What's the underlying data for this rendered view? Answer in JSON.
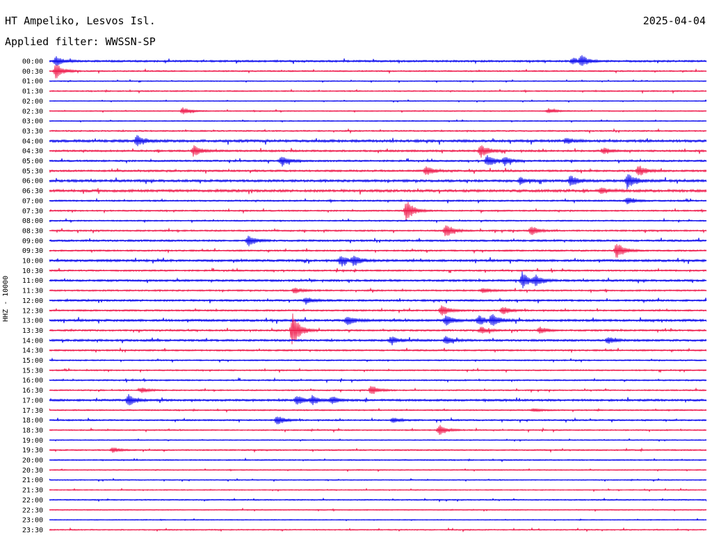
{
  "header": {
    "station": "HT Ampeliko, Lesvos Isl.",
    "date": "2025-04-04",
    "filter": "Applied filter: WWSSN-SP"
  },
  "axis": {
    "channel_label": "HHZ - 10000"
  },
  "chart_data": {
    "type": "line",
    "title": "HT Ampeliko, Lesvos Isl.",
    "subtitle": "Applied filter: WWSSN-SP",
    "ylabel": "HHZ - 10000",
    "trace_minutes": 30,
    "series_colors": [
      "#0000ee",
      "#ee1144"
    ],
    "rows": [
      "00:00",
      "00:30",
      "01:00",
      "01:30",
      "02:00",
      "02:30",
      "03:00",
      "03:30",
      "04:00",
      "04:30",
      "05:00",
      "05:30",
      "06:00",
      "06:30",
      "07:00",
      "07:30",
      "08:00",
      "08:30",
      "09:00",
      "09:30",
      "10:00",
      "10:30",
      "11:00",
      "11:30",
      "12:00",
      "12:30",
      "13:00",
      "13:30",
      "14:00",
      "14:30",
      "15:00",
      "15:30",
      "16:00",
      "16:30",
      "17:00",
      "17:30",
      "18:00",
      "18:30",
      "19:00",
      "19:30",
      "20:00",
      "20:30",
      "21:00",
      "21:30",
      "22:00",
      "22:30",
      "23:00",
      "23:30"
    ],
    "noise": [
      1.2,
      0.8,
      0.6,
      0.8,
      0.5,
      0.6,
      0.6,
      0.9,
      1.6,
      1.2,
      1.1,
      1.2,
      1.5,
      1.6,
      1.0,
      0.9,
      0.8,
      1.0,
      1.2,
      1.0,
      1.4,
      1.0,
      1.3,
      1.0,
      1.2,
      1.0,
      1.4,
      1.1,
      1.3,
      1.0,
      0.8,
      0.8,
      0.9,
      0.8,
      1.3,
      0.8,
      0.9,
      0.8,
      0.6,
      0.8,
      0.7,
      0.6,
      0.6,
      0.6,
      0.7,
      0.6,
      0.5,
      0.7
    ],
    "events": [
      {
        "row": 0,
        "t": 0.3,
        "amp": 7
      },
      {
        "row": 0,
        "t": 24.3,
        "amp": 7
      },
      {
        "row": 0,
        "t": 23.9,
        "amp": 5
      },
      {
        "row": 1,
        "t": 0.3,
        "amp": 11
      },
      {
        "row": 5,
        "t": 6.1,
        "amp": 6
      },
      {
        "row": 5,
        "t": 22.8,
        "amp": 4
      },
      {
        "row": 8,
        "t": 4.0,
        "amp": 9
      },
      {
        "row": 8,
        "t": 23.6,
        "amp": 4
      },
      {
        "row": 9,
        "t": 6.6,
        "amp": 8
      },
      {
        "row": 9,
        "t": 19.7,
        "amp": 10
      },
      {
        "row": 9,
        "t": 25.3,
        "amp": 5
      },
      {
        "row": 10,
        "t": 10.6,
        "amp": 8
      },
      {
        "row": 10,
        "t": 20.0,
        "amp": 9
      },
      {
        "row": 10,
        "t": 20.8,
        "amp": 6
      },
      {
        "row": 11,
        "t": 17.2,
        "amp": 7
      },
      {
        "row": 11,
        "t": 26.9,
        "amp": 8
      },
      {
        "row": 12,
        "t": 26.4,
        "amp": 12
      },
      {
        "row": 12,
        "t": 23.8,
        "amp": 8
      },
      {
        "row": 12,
        "t": 21.5,
        "amp": 5
      },
      {
        "row": 13,
        "t": 25.2,
        "amp": 5
      },
      {
        "row": 14,
        "t": 26.4,
        "amp": 5
      },
      {
        "row": 15,
        "t": 16.3,
        "amp": 16
      },
      {
        "row": 17,
        "t": 18.1,
        "amp": 10
      },
      {
        "row": 17,
        "t": 22.0,
        "amp": 7
      },
      {
        "row": 18,
        "t": 9.1,
        "amp": 8
      },
      {
        "row": 19,
        "t": 25.9,
        "amp": 12
      },
      {
        "row": 20,
        "t": 13.3,
        "amp": 8
      },
      {
        "row": 20,
        "t": 13.9,
        "amp": 7
      },
      {
        "row": 22,
        "t": 21.6,
        "amp": 11
      },
      {
        "row": 22,
        "t": 22.2,
        "amp": 7
      },
      {
        "row": 23,
        "t": 11.2,
        "amp": 5
      },
      {
        "row": 23,
        "t": 19.8,
        "amp": 4
      },
      {
        "row": 24,
        "t": 11.7,
        "amp": 5
      },
      {
        "row": 25,
        "t": 17.9,
        "amp": 8
      },
      {
        "row": 25,
        "t": 20.7,
        "amp": 6
      },
      {
        "row": 26,
        "t": 13.6,
        "amp": 7
      },
      {
        "row": 26,
        "t": 18.1,
        "amp": 8
      },
      {
        "row": 26,
        "t": 19.6,
        "amp": 7
      },
      {
        "row": 26,
        "t": 20.2,
        "amp": 9
      },
      {
        "row": 27,
        "t": 11.1,
        "amp": 24
      },
      {
        "row": 27,
        "t": 19.7,
        "amp": 5
      },
      {
        "row": 27,
        "t": 22.4,
        "amp": 5
      },
      {
        "row": 28,
        "t": 15.6,
        "amp": 6
      },
      {
        "row": 28,
        "t": 18.1,
        "amp": 6
      },
      {
        "row": 28,
        "t": 25.5,
        "amp": 5
      },
      {
        "row": 33,
        "t": 14.7,
        "amp": 7
      },
      {
        "row": 33,
        "t": 4.2,
        "amp": 4
      },
      {
        "row": 34,
        "t": 3.6,
        "amp": 9
      },
      {
        "row": 34,
        "t": 11.3,
        "amp": 7
      },
      {
        "row": 34,
        "t": 12.0,
        "amp": 6
      },
      {
        "row": 34,
        "t": 12.9,
        "amp": 5
      },
      {
        "row": 35,
        "t": 22.1,
        "amp": 3
      },
      {
        "row": 36,
        "t": 10.4,
        "amp": 7
      },
      {
        "row": 36,
        "t": 15.7,
        "amp": 4
      },
      {
        "row": 37,
        "t": 17.8,
        "amp": 8
      },
      {
        "row": 39,
        "t": 2.9,
        "amp": 4
      }
    ]
  }
}
